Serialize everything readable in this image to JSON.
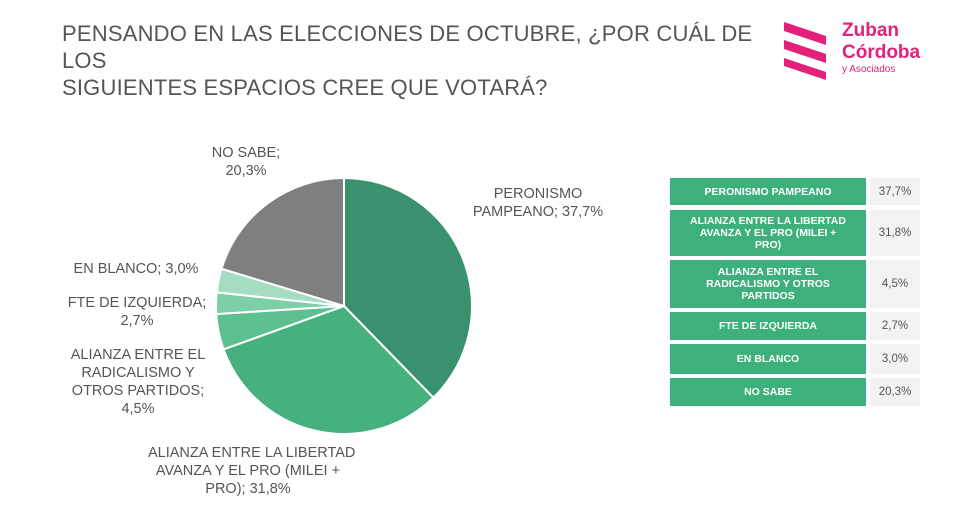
{
  "title": {
    "line1": "PENSANDO EN LAS ELECCIONES DE OCTUBRE, ¿POR CUÁL DE LOS",
    "line2": "SIGUIENTES ESPACIOS CREE QUE VOTARÁ?"
  },
  "logo": {
    "line1": "Zuban",
    "line2": "Córdoba",
    "line3": "y Asociados",
    "color": "#e3207a"
  },
  "chart_data": {
    "type": "pie",
    "title": "PENSANDO EN LAS ELECCIONES DE OCTUBRE, ¿POR CUÁL DE LOS SIGUIENTES ESPACIOS CREE QUE VOTARÁ?",
    "slices": [
      {
        "label": "PERONISMO PAMPEANO",
        "value": 37.7,
        "value_text": "37,7%",
        "color": "#3a916e",
        "chart_label": [
          "PERONISMO",
          "PAMPEANO; 37,7%"
        ]
      },
      {
        "label": "ALIANZA ENTRE LA LIBERTAD AVANZA Y EL PRO (MILEI + PRO)",
        "value": 31.8,
        "value_text": "31,8%",
        "color": "#46b07f",
        "chart_label": [
          "ALIANZA ENTRE LA LIBERTAD",
          "AVANZA Y EL PRO (MILEI +",
          "PRO); 31,8%"
        ]
      },
      {
        "label": "ALIANZA ENTRE EL RADICALISMO Y OTROS PARTIDOS",
        "value": 4.5,
        "value_text": "4,5%",
        "color": "#5cc090",
        "chart_label": [
          "ALIANZA ENTRE EL",
          "RADICALISMO Y",
          "OTROS PARTIDOS;",
          "4,5%"
        ]
      },
      {
        "label": "FTE DE IZQUIERDA",
        "value": 2.7,
        "value_text": "2,7%",
        "color": "#7dcfa8",
        "chart_label": [
          "FTE DE IZQUIERDA;",
          "2,7%"
        ]
      },
      {
        "label": "EN BLANCO",
        "value": 3.0,
        "value_text": "3,0%",
        "color": "#a6ddc2",
        "chart_label": [
          "EN BLANCO; 3,0%"
        ]
      },
      {
        "label": "NO SABE",
        "value": 20.3,
        "value_text": "20,3%",
        "color": "#7f7f7f",
        "chart_label": [
          "NO SABE;",
          "20,3%"
        ]
      }
    ],
    "start_angle": "12 o'clock",
    "direction": "clockwise",
    "legend": {
      "placement": "right",
      "rows": [
        {
          "name": [
            "PERONISMO PAMPEANO"
          ],
          "value": "37,7%"
        },
        {
          "name": [
            "ALIANZA ENTRE LA LIBERTAD",
            "AVANZA Y EL PRO (MILEI +",
            "PRO)"
          ],
          "value": "31,8%"
        },
        {
          "name": [
            "ALIANZA ENTRE EL",
            "RADICALISMO Y OTROS",
            "PARTIDOS"
          ],
          "value": "4,5%"
        },
        {
          "name": [
            "FTE DE IZQUIERDA"
          ],
          "value": "2,7%"
        },
        {
          "name": [
            "EN BLANCO"
          ],
          "value": "3,0%"
        },
        {
          "name": [
            "NO SABE"
          ],
          "value": "20,3%"
        }
      ]
    }
  }
}
